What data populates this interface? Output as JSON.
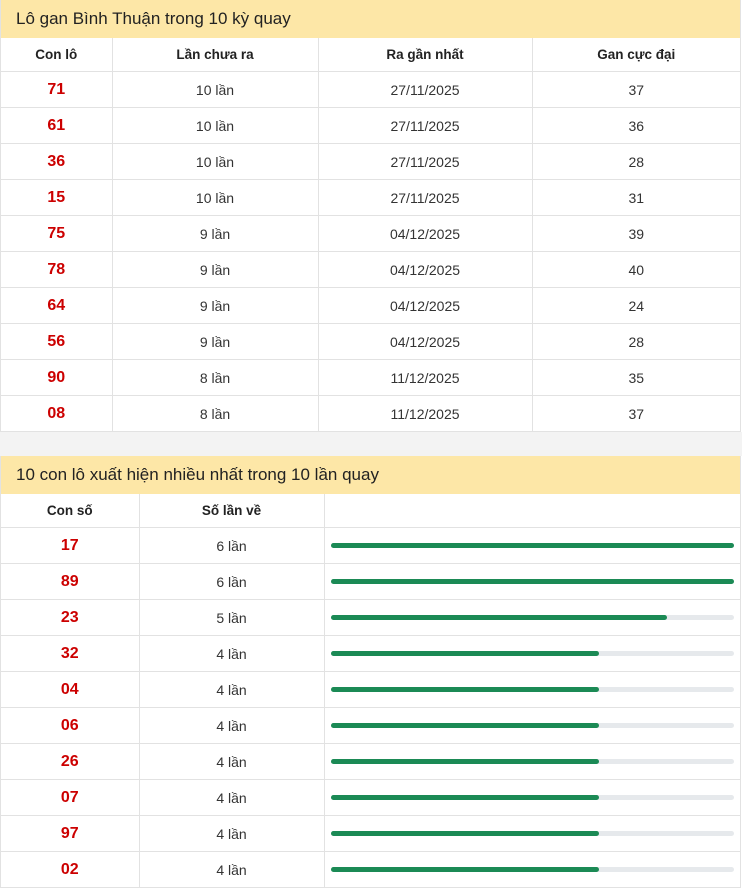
{
  "gan": {
    "title": "Lô gan Bình Thuận trong 10 kỳ quay",
    "headers": [
      "Con lô",
      "Lần chưa ra",
      "Ra gần nhất",
      "Gan cực đại"
    ],
    "rows": [
      {
        "lo": "71",
        "chua_ra": "10 lần",
        "gan_nhat": "27/11/2025",
        "cuc_dai": "37"
      },
      {
        "lo": "61",
        "chua_ra": "10 lần",
        "gan_nhat": "27/11/2025",
        "cuc_dai": "36"
      },
      {
        "lo": "36",
        "chua_ra": "10 lần",
        "gan_nhat": "27/11/2025",
        "cuc_dai": "28"
      },
      {
        "lo": "15",
        "chua_ra": "10 lần",
        "gan_nhat": "27/11/2025",
        "cuc_dai": "31"
      },
      {
        "lo": "75",
        "chua_ra": "9 lần",
        "gan_nhat": "04/12/2025",
        "cuc_dai": "39"
      },
      {
        "lo": "78",
        "chua_ra": "9 lần",
        "gan_nhat": "04/12/2025",
        "cuc_dai": "40"
      },
      {
        "lo": "64",
        "chua_ra": "9 lần",
        "gan_nhat": "04/12/2025",
        "cuc_dai": "24"
      },
      {
        "lo": "56",
        "chua_ra": "9 lần",
        "gan_nhat": "04/12/2025",
        "cuc_dai": "28"
      },
      {
        "lo": "90",
        "chua_ra": "8 lần",
        "gan_nhat": "11/12/2025",
        "cuc_dai": "35"
      },
      {
        "lo": "08",
        "chua_ra": "8 lần",
        "gan_nhat": "11/12/2025",
        "cuc_dai": "37"
      }
    ]
  },
  "freq": {
    "title": "10 con lô xuất hiện nhiều nhất trong 10 lần quay",
    "headers": [
      "Con số",
      "Số lần về",
      ""
    ],
    "max_count": 6,
    "bar_color": "#1b8a55",
    "track_color": "#e6e9ec",
    "rows": [
      {
        "so": "17",
        "lan_ve": "6 lần",
        "count": 6
      },
      {
        "so": "89",
        "lan_ve": "6 lần",
        "count": 6
      },
      {
        "so": "23",
        "lan_ve": "5 lần",
        "count": 5
      },
      {
        "so": "32",
        "lan_ve": "4 lần",
        "count": 4
      },
      {
        "so": "04",
        "lan_ve": "4 lần",
        "count": 4
      },
      {
        "so": "06",
        "lan_ve": "4 lần",
        "count": 4
      },
      {
        "so": "26",
        "lan_ve": "4 lần",
        "count": 4
      },
      {
        "so": "07",
        "lan_ve": "4 lần",
        "count": 4
      },
      {
        "so": "97",
        "lan_ve": "4 lần",
        "count": 4
      },
      {
        "so": "02",
        "lan_ve": "4 lần",
        "count": 4
      }
    ]
  }
}
